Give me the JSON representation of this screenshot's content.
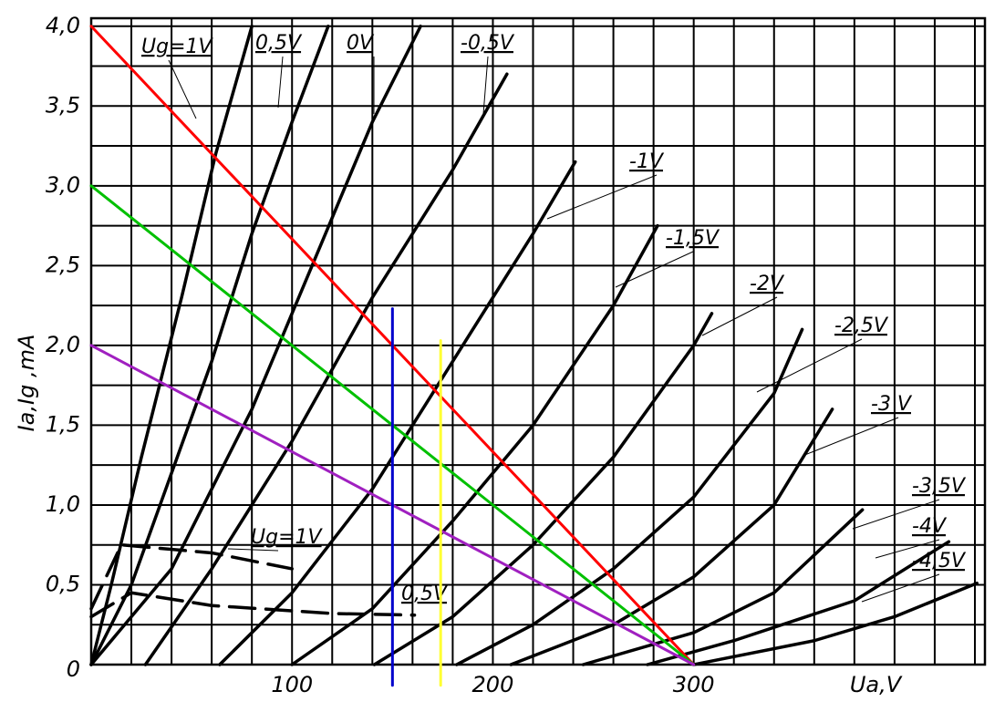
{
  "chart_data": {
    "type": "line",
    "x_label": "Ua,V",
    "y_label": "Ia,Ig ,mA",
    "xlim": [
      0,
      445
    ],
    "ylim": [
      0,
      4.05
    ],
    "xticks": [
      100,
      200,
      300
    ],
    "yticks": [
      0,
      {
        "value": 0.5,
        "label": "0,5"
      },
      {
        "value": 1.0,
        "label": "1,0"
      },
      {
        "value": 1.5,
        "label": "1,5"
      },
      {
        "value": 2.0,
        "label": "2,0"
      },
      {
        "value": 2.5,
        "label": "2,5"
      },
      {
        "value": 3.0,
        "label": "3,0"
      },
      {
        "value": 3.5,
        "label": "3,5"
      },
      {
        "value": 4.0,
        "label": "4,0"
      }
    ],
    "x_minor_ticks": [
      0,
      20,
      40,
      60,
      80,
      120,
      140,
      160,
      180,
      220,
      240,
      260,
      280,
      320,
      340,
      360,
      380,
      400,
      420,
      440
    ],
    "y_minor_ticks": [
      0.25,
      0.75,
      1.25,
      1.75,
      2.25,
      2.75,
      3.25,
      3.75
    ],
    "grid": true,
    "series": [
      {
        "name": "Ug=1V",
        "color": "#000000",
        "x": [
          0,
          10,
          25,
          45,
          62,
          80
        ],
        "values": [
          0,
          0.5,
          1.3,
          2.3,
          3.2,
          4.0
        ]
      },
      {
        "name": "0,5V",
        "color": "#000000",
        "x": [
          0,
          20,
          40,
          60,
          80,
          100,
          118
        ],
        "values": [
          0,
          0.5,
          1.2,
          1.9,
          2.7,
          3.4,
          4.0
        ]
      },
      {
        "name": "0V",
        "color": "#000000",
        "x": [
          0,
          40,
          60,
          80,
          100,
          120,
          140,
          164
        ],
        "values": [
          0,
          0.6,
          1.1,
          1.6,
          2.2,
          2.8,
          3.4,
          4.0
        ]
      },
      {
        "name": "-0,5V",
        "color": "#000000",
        "x": [
          27,
          60,
          100,
          140,
          180,
          207
        ],
        "values": [
          0,
          0.6,
          1.4,
          2.3,
          3.1,
          3.7
        ]
      },
      {
        "name": "-1V",
        "color": "#000000",
        "x": [
          64,
          100,
          140,
          180,
          220,
          241
        ],
        "values": [
          0,
          0.45,
          1.1,
          1.9,
          2.7,
          3.15
        ]
      },
      {
        "name": "-1,5V",
        "color": "#000000",
        "x": [
          100,
          140,
          180,
          220,
          260,
          282
        ],
        "values": [
          0,
          0.35,
          0.9,
          1.5,
          2.25,
          2.75
        ]
      },
      {
        "name": "-2V",
        "color": "#000000",
        "x": [
          141,
          180,
          220,
          260,
          300,
          309
        ],
        "values": [
          0,
          0.3,
          0.75,
          1.3,
          2.0,
          2.2
        ]
      },
      {
        "name": "-2,5V",
        "color": "#000000",
        "x": [
          182,
          220,
          260,
          300,
          340,
          354
        ],
        "values": [
          0,
          0.25,
          0.6,
          1.05,
          1.7,
          2.1
        ]
      },
      {
        "name": "-3 V",
        "color": "#000000",
        "x": [
          209,
          260,
          300,
          340,
          369
        ],
        "values": [
          0,
          0.25,
          0.55,
          1.0,
          1.6
        ]
      },
      {
        "name": "-3,5V",
        "color": "#000000",
        "x": [
          245,
          300,
          340,
          384
        ],
        "values": [
          0,
          0.2,
          0.45,
          0.97
        ]
      },
      {
        "name": "-4V",
        "color": "#000000",
        "x": [
          277,
          320,
          380,
          427
        ],
        "values": [
          0,
          0.15,
          0.4,
          0.77
        ]
      },
      {
        "name": "-4,5V",
        "color": "#000000",
        "x": [
          300,
          360,
          400,
          441
        ],
        "values": [
          0,
          0.15,
          0.3,
          0.51
        ]
      },
      {
        "name": "Ug=1V",
        "color": "#000000",
        "dash": true,
        "x": [
          0,
          15,
          60,
          100
        ],
        "values": [
          0.35,
          0.75,
          0.7,
          0.6
        ]
      },
      {
        "name": "0,5V",
        "color": "#000000",
        "dash": true,
        "x": [
          0,
          20,
          60,
          120,
          161
        ],
        "values": [
          0.3,
          0.45,
          0.37,
          0.32,
          0.31
        ]
      },
      {
        "color": "#ff0000",
        "x": [
          0,
          300
        ],
        "values": [
          4.0,
          0
        ]
      },
      {
        "color": "#00c000",
        "x": [
          0,
          300
        ],
        "values": [
          3.0,
          0
        ]
      },
      {
        "color": "#a020c0",
        "x": [
          0,
          300
        ],
        "values": [
          2.0,
          0
        ]
      },
      {
        "color": "#0000cc",
        "x": [
          150,
          150
        ],
        "values": [
          -0.13,
          2.23
        ]
      },
      {
        "color": "#ffff33",
        "x": [
          174,
          174
        ],
        "values": [
          -0.13,
          2.03
        ]
      }
    ]
  }
}
